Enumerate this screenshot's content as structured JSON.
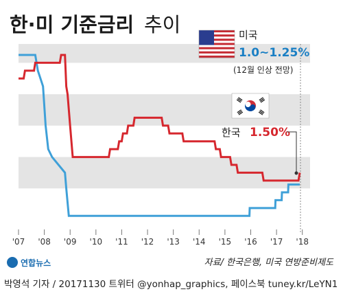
{
  "title": {
    "main": "한·미 기준금리",
    "sub": "추이"
  },
  "colors": {
    "us": "#3fa0d8",
    "kr": "#d6272e",
    "band": "#e4e4e4"
  },
  "us_annotation": {
    "country": "미국",
    "value": "1.0~1.25%",
    "note": "(12월 인상 전망)"
  },
  "kr_annotation": {
    "country": "한국",
    "value": "1.50%"
  },
  "source": "자료/ 한국은행, 미국 연방준비제도",
  "logo": "연합뉴스",
  "footer": "박영석 기자 / 20171130 트위터 @yonhap_graphics, 페이스북 tuney.kr/LeYN1",
  "chart_data": {
    "type": "line",
    "x_ticks": [
      "'07",
      "'08",
      "'09",
      "'10",
      "'11",
      "'12",
      "'13",
      "'14",
      "'15",
      "'16",
      "'17",
      "'18"
    ],
    "xlim": [
      2007.0,
      2018.3
    ],
    "ylim": [
      0,
      5.6
    ],
    "series": [
      {
        "name": "미국",
        "color": "#3fa0d8",
        "points": [
          [
            2007.0,
            5.25
          ],
          [
            2007.65,
            5.25
          ],
          [
            2007.75,
            4.75
          ],
          [
            2007.85,
            4.5
          ],
          [
            2007.95,
            4.25
          ],
          [
            2008.05,
            3.0
          ],
          [
            2008.15,
            2.25
          ],
          [
            2008.3,
            2.0
          ],
          [
            2008.8,
            1.5
          ],
          [
            2008.85,
            1.0
          ],
          [
            2008.95,
            0.125
          ],
          [
            2015.95,
            0.125
          ],
          [
            2015.96,
            0.375
          ],
          [
            2016.95,
            0.375
          ],
          [
            2016.96,
            0.625
          ],
          [
            2017.2,
            0.625
          ],
          [
            2017.21,
            0.875
          ],
          [
            2017.45,
            0.875
          ],
          [
            2017.46,
            1.125
          ],
          [
            2017.9,
            1.125
          ]
        ]
      },
      {
        "name": "한국",
        "color": "#d6272e",
        "points": [
          [
            2007.0,
            4.5
          ],
          [
            2007.2,
            4.5
          ],
          [
            2007.25,
            4.75
          ],
          [
            2007.6,
            4.75
          ],
          [
            2007.65,
            5.0
          ],
          [
            2008.6,
            5.0
          ],
          [
            2008.65,
            5.25
          ],
          [
            2008.8,
            5.25
          ],
          [
            2008.85,
            4.25
          ],
          [
            2008.9,
            4.0
          ],
          [
            2009.0,
            3.0
          ],
          [
            2009.05,
            2.5
          ],
          [
            2009.1,
            2.0
          ],
          [
            2010.5,
            2.0
          ],
          [
            2010.55,
            2.25
          ],
          [
            2010.85,
            2.25
          ],
          [
            2010.9,
            2.5
          ],
          [
            2011.0,
            2.5
          ],
          [
            2011.05,
            2.75
          ],
          [
            2011.2,
            2.75
          ],
          [
            2011.25,
            3.0
          ],
          [
            2011.45,
            3.0
          ],
          [
            2011.5,
            3.25
          ],
          [
            2012.55,
            3.25
          ],
          [
            2012.6,
            3.0
          ],
          [
            2012.8,
            3.0
          ],
          [
            2012.85,
            2.75
          ],
          [
            2013.35,
            2.75
          ],
          [
            2013.4,
            2.5
          ],
          [
            2014.6,
            2.5
          ],
          [
            2014.65,
            2.25
          ],
          [
            2014.8,
            2.25
          ],
          [
            2014.85,
            2.0
          ],
          [
            2015.2,
            2.0
          ],
          [
            2015.25,
            1.75
          ],
          [
            2015.45,
            1.75
          ],
          [
            2015.5,
            1.5
          ],
          [
            2016.45,
            1.5
          ],
          [
            2016.5,
            1.25
          ],
          [
            2017.85,
            1.25
          ],
          [
            2017.9,
            1.5
          ]
        ]
      }
    ]
  }
}
